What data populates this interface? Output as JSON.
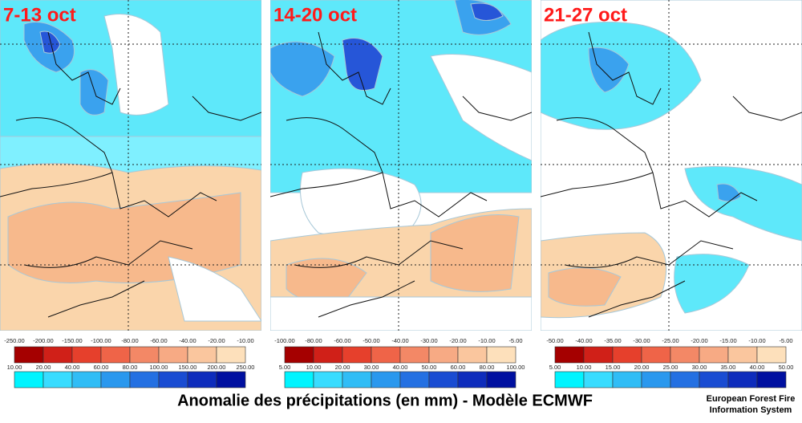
{
  "panels": [
    {
      "title": "7-13 oct",
      "negative_legend": [
        "-250.00",
        "-200.00",
        "-150.00",
        "-100.00",
        "-80.00",
        "-60.00",
        "-40.00",
        "-20.00",
        "-10.00"
      ],
      "positive_legend": [
        "10.00",
        "20.00",
        "40.00",
        "60.00",
        "80.00",
        "100.00",
        "150.00",
        "200.00",
        "250.00"
      ]
    },
    {
      "title": "14-20 oct",
      "negative_legend": [
        "-100.00",
        "-80.00",
        "-60.00",
        "-50.00",
        "-40.00",
        "-30.00",
        "-20.00",
        "-10.00",
        "-5.00"
      ],
      "positive_legend": [
        "5.00",
        "10.00",
        "20.00",
        "30.00",
        "40.00",
        "50.00",
        "60.00",
        "80.00",
        "100.00"
      ]
    },
    {
      "title": "21-27 oct",
      "negative_legend": [
        "-50.00",
        "-40.00",
        "-35.00",
        "-30.00",
        "-25.00",
        "-20.00",
        "-15.00",
        "-10.00",
        "-5.00"
      ],
      "positive_legend": [
        "5.00",
        "10.00",
        "15.00",
        "20.00",
        "25.00",
        "30.00",
        "35.00",
        "40.00",
        "50.00"
      ]
    }
  ],
  "caption": "Anomalie des précipitations (en mm) - Modèle ECMWF",
  "credit": [
    "European Forest Fire",
    "Information System"
  ]
}
